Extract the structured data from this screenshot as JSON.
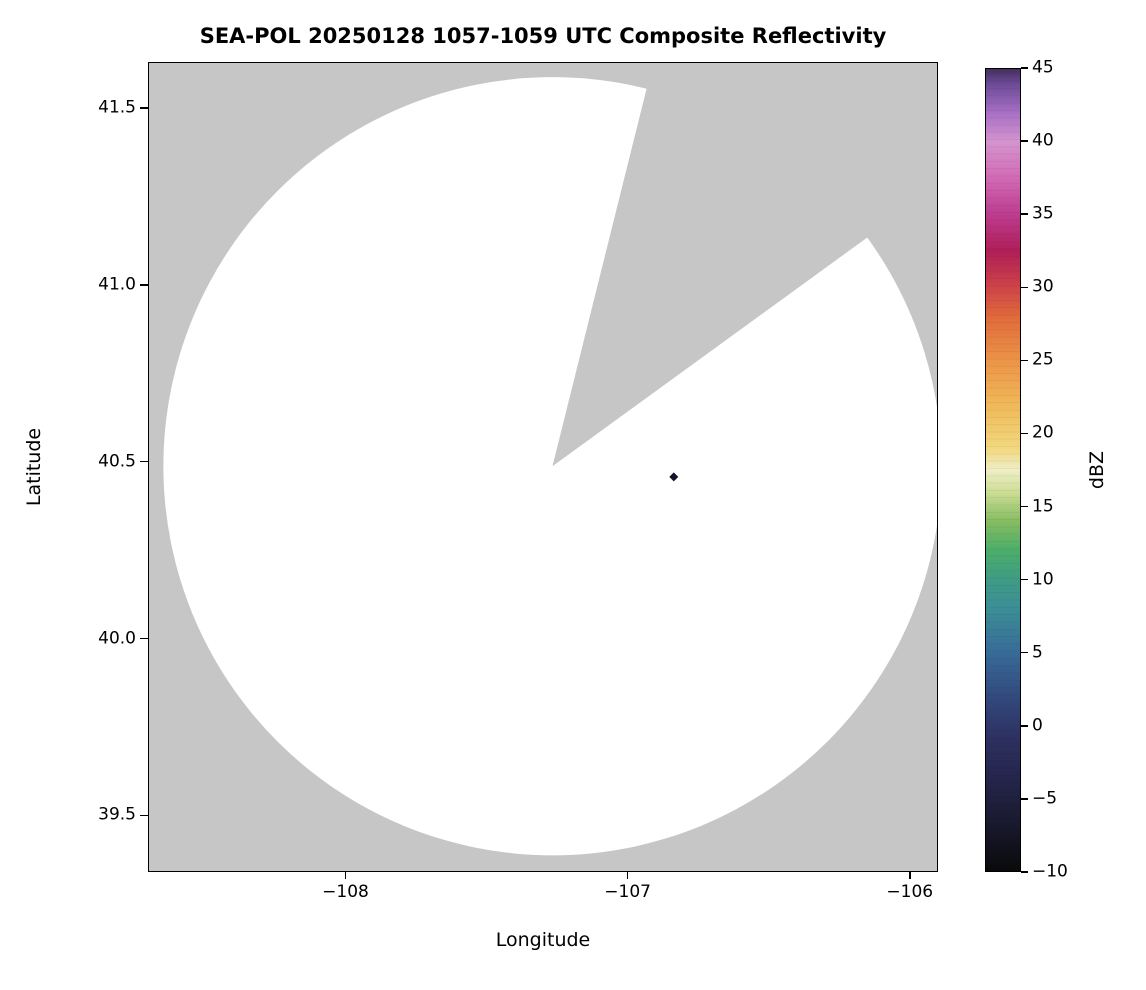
{
  "chart_data": {
    "type": "heatmap",
    "title": "SEA-POL 20250128 1057-1059 UTC Composite Reflectivity",
    "xlabel": "Longitude",
    "ylabel": "Latitude",
    "xlim": [
      -108.7,
      -105.9
    ],
    "ylim": [
      39.34,
      41.63
    ],
    "grid": false,
    "legend_position": "colorbar-right",
    "x_ticks": [
      {
        "v": -108,
        "label": "−108"
      },
      {
        "v": -107,
        "label": "−107"
      },
      {
        "v": -106,
        "label": "−106"
      }
    ],
    "y_ticks": [
      {
        "v": 41.5,
        "label": "41.5"
      },
      {
        "v": 41.0,
        "label": "41.0"
      },
      {
        "v": 40.5,
        "label": "40.5"
      },
      {
        "v": 40.0,
        "label": "40.0"
      },
      {
        "v": 39.5,
        "label": "39.5"
      }
    ],
    "colorbar": {
      "label": "dBZ",
      "min": -10,
      "max": 45,
      "ticks": [
        {
          "v": 45,
          "label": "45"
        },
        {
          "v": 40,
          "label": "40"
        },
        {
          "v": 35,
          "label": "35"
        },
        {
          "v": 30,
          "label": "30"
        },
        {
          "v": 25,
          "label": "25"
        },
        {
          "v": 20,
          "label": "20"
        },
        {
          "v": 15,
          "label": "15"
        },
        {
          "v": 10,
          "label": "10"
        },
        {
          "v": 5,
          "label": "5"
        },
        {
          "v": 0,
          "label": "0"
        },
        {
          "v": -5,
          "label": "−5"
        },
        {
          "v": -10,
          "label": "−10"
        }
      ],
      "gradient": [
        {
          "v": -10,
          "c": "#0a0a0c"
        },
        {
          "v": -7,
          "c": "#18182c"
        },
        {
          "v": -4,
          "c": "#24244a"
        },
        {
          "v": -1,
          "c": "#2d3060"
        },
        {
          "v": 2,
          "c": "#334a7e"
        },
        {
          "v": 5,
          "c": "#386c98"
        },
        {
          "v": 8,
          "c": "#3c8e96"
        },
        {
          "v": 10,
          "c": "#3f9c84"
        },
        {
          "v": 12,
          "c": "#4cae6a"
        },
        {
          "v": 14,
          "c": "#86bc60"
        },
        {
          "v": 16,
          "c": "#cede96"
        },
        {
          "v": 17.5,
          "c": "#efeec6"
        },
        {
          "v": 19,
          "c": "#f2d87e"
        },
        {
          "v": 22,
          "c": "#f0b858"
        },
        {
          "v": 25,
          "c": "#ec9448"
        },
        {
          "v": 28,
          "c": "#e06a3c"
        },
        {
          "v": 30,
          "c": "#cf4448"
        },
        {
          "v": 32.5,
          "c": "#b01e58"
        },
        {
          "v": 35,
          "c": "#bc3c8e"
        },
        {
          "v": 37.5,
          "c": "#d26ab6"
        },
        {
          "v": 40,
          "c": "#d494ce"
        },
        {
          "v": 42,
          "c": "#a870c6"
        },
        {
          "v": 44,
          "c": "#6c4a96"
        },
        {
          "v": 45,
          "c": "#44305e"
        }
      ]
    },
    "radar": {
      "center": {
        "lon": -107.27,
        "lat": 40.49
      },
      "radius_deg_lat": 1.1,
      "nodata_wedge_azimuth_deg": [
        14,
        54
      ],
      "point": {
        "lon": -106.84,
        "lat": 40.46
      }
    },
    "colors": {
      "background_nodata": "#c6c6c6",
      "coverage_fill": "#ffffff",
      "point_fill": "#17112a",
      "axis": "#000000"
    }
  }
}
